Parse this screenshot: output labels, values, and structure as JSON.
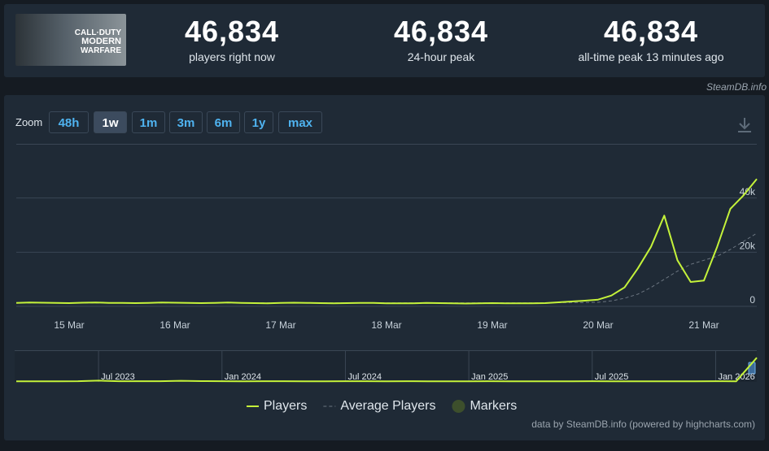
{
  "header": {
    "logo_lines": [
      "CALL·DUTY",
      "MODERN",
      "WARFARE"
    ],
    "stats": [
      {
        "value": "46,834",
        "label": "players right now"
      },
      {
        "value": "46,834",
        "label": "24-hour peak"
      },
      {
        "value": "46,834",
        "label": "all-time peak 13 minutes ago"
      }
    ],
    "source": "SteamDB.info"
  },
  "zoom": {
    "label": "Zoom",
    "buttons": [
      "48h",
      "1w",
      "1m",
      "3m",
      "6m",
      "1y",
      "max"
    ],
    "active": "1w"
  },
  "credits": "data by SteamDB.info (powered by highcharts.com)",
  "chart_data": [
    {
      "type": "line",
      "grid": true,
      "categories": [
        null,
        null,
        null,
        null,
        "15 Mar",
        null,
        null,
        null,
        null,
        null,
        null,
        null,
        "16 Mar",
        null,
        null,
        null,
        null,
        null,
        null,
        null,
        "17 Mar",
        null,
        null,
        null,
        null,
        null,
        null,
        null,
        "18 Mar",
        null,
        null,
        null,
        null,
        null,
        null,
        null,
        "19 Mar",
        null,
        null,
        null,
        null,
        null,
        null,
        null,
        "20 Mar",
        null,
        null,
        null,
        null,
        null,
        null,
        null,
        "21 Mar",
        null,
        null,
        null,
        null
      ],
      "ylim": [
        0,
        60000
      ],
      "yticks": [
        0,
        {
          "value": 20000,
          "label": "20k"
        },
        {
          "value": 40000,
          "label": "40k"
        }
      ],
      "series": [
        {
          "name": "Players",
          "color": "#c4f23a",
          "dashed": false,
          "values": [
            1300,
            1400,
            1350,
            1250,
            1200,
            1350,
            1400,
            1300,
            1250,
            1200,
            1300,
            1450,
            1350,
            1250,
            1200,
            1300,
            1400,
            1300,
            1200,
            1150,
            1250,
            1350,
            1300,
            1200,
            1150,
            1200,
            1300,
            1250,
            1150,
            1100,
            1150,
            1250,
            1200,
            1100,
            1050,
            1100,
            1200,
            1150,
            1100,
            1100,
            1200,
            1500,
            1800,
            2100,
            2500,
            4000,
            7000,
            14000,
            22000,
            33500,
            17000,
            9000,
            9500,
            22000,
            36000,
            41000,
            47000
          ]
        },
        {
          "name": "Average Players",
          "color": "#6b7580",
          "dashed": true,
          "values": [
            1250,
            1250,
            1250,
            1250,
            1250,
            1250,
            1250,
            1250,
            1250,
            1250,
            1250,
            1250,
            1250,
            1250,
            1250,
            1250,
            1250,
            1250,
            1250,
            1250,
            1250,
            1250,
            1250,
            1250,
            1250,
            1250,
            1250,
            1250,
            1250,
            1250,
            1250,
            1250,
            1250,
            1250,
            1250,
            1250,
            1250,
            1250,
            1250,
            1250,
            1300,
            1350,
            1400,
            1450,
            1500,
            2000,
            3000,
            4500,
            7000,
            10000,
            13000,
            15500,
            17000,
            18500,
            21000,
            24000,
            27000
          ]
        }
      ],
      "markers_label": "Markers",
      "markers_color": "#3d4f2c"
    },
    {
      "type": "line",
      "categories": [
        null,
        null,
        null,
        null,
        "Jul 2023",
        null,
        null,
        null,
        null,
        null,
        "Jan 2024",
        null,
        null,
        null,
        null,
        null,
        "Jul 2024",
        null,
        null,
        null,
        null,
        null,
        "Jan 2025",
        null,
        null,
        null,
        null,
        null,
        "Jul 2025",
        null,
        null,
        null,
        null,
        null,
        "Jan 2026",
        null,
        null
      ],
      "ylim": [
        0,
        60000
      ],
      "series": [
        {
          "color": "#c4f23a",
          "values": [
            1200,
            1300,
            1250,
            1400,
            2600,
            1500,
            1400,
            1350,
            2200,
            1600,
            1400,
            1300,
            1350,
            1500,
            1300,
            1250,
            1400,
            1350,
            1300,
            1500,
            1300,
            1250,
            1300,
            1350,
            1300,
            1250,
            1300,
            1200,
            1350,
            1300,
            1250,
            1200,
            1300,
            1250,
            1400,
            1300,
            47000
          ]
        }
      ]
    }
  ]
}
